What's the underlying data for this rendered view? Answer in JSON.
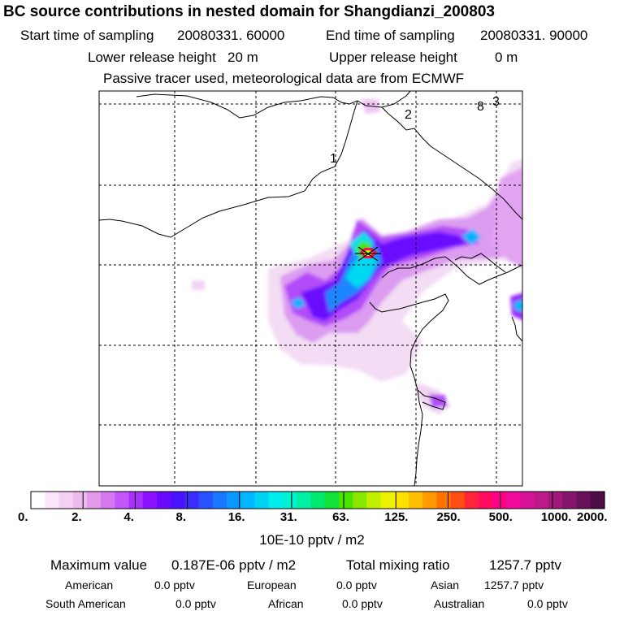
{
  "header": {
    "title": "BC  source contributions in nested domain for Shangdianzi_200803",
    "start_label": "Start time of sampling",
    "start_value": "20080331. 60000",
    "end_label": "End time of sampling",
    "end_value": "20080331. 90000",
    "lower_label": "Lower release height",
    "lower_value": "20 m",
    "upper_label": "Upper release height",
    "upper_value": "0 m",
    "tracer_note": "Passive tracer used, meteorological data are from ECMWF"
  },
  "map": {
    "markers": [
      "1",
      "2",
      "8",
      "3"
    ],
    "source_symbol": "receptor-star"
  },
  "colorbar": {
    "tick_labels": [
      "0.",
      "2.",
      "4.",
      "8.",
      "16.",
      "31.",
      "63.",
      "125.",
      "250.",
      "500.",
      "1000.",
      "2000."
    ],
    "colors": [
      "#ffffff",
      "#fbe6fb",
      "#f6d0f6",
      "#eebaee",
      "#e49ae8",
      "#d678f2",
      "#c356fa",
      "#aa30ff",
      "#8c12ff",
      "#6a0aff",
      "#4a12ff",
      "#3a2cff",
      "#2852ff",
      "#1876ff",
      "#0a98ff",
      "#00b8ff",
      "#00d4f4",
      "#00eeee",
      "#00f2d2",
      "#00f0a4",
      "#00e86e",
      "#10e238",
      "#48e400",
      "#8ae800",
      "#c2ee00",
      "#eef200",
      "#ffe000",
      "#ffbe00",
      "#ff9a00",
      "#ff7400",
      "#ff4c12",
      "#ff2438",
      "#ff0c60",
      "#ff0088",
      "#f20a9e",
      "#d81296",
      "#bc1a8a",
      "#a0187c",
      "#84146c",
      "#68105a",
      "#4c0c46"
    ],
    "unit_label": "10E-10 pptv / m2"
  },
  "summary": {
    "max_label": "Maximum value",
    "max_value": "0.187E-06 pptv / m2",
    "total_label": "Total mixing ratio",
    "total_value": "1257.7 pptv",
    "regions": [
      {
        "name": "American",
        "value": "0.0 pptv"
      },
      {
        "name": "European",
        "value": "0.0 pptv"
      },
      {
        "name": "Asian",
        "value": "1257.7 pptv"
      },
      {
        "name": "South American",
        "value": "0.0 pptv"
      },
      {
        "name": "African",
        "value": "0.0 pptv"
      },
      {
        "name": "Australian",
        "value": "0.0 pptv"
      }
    ]
  }
}
